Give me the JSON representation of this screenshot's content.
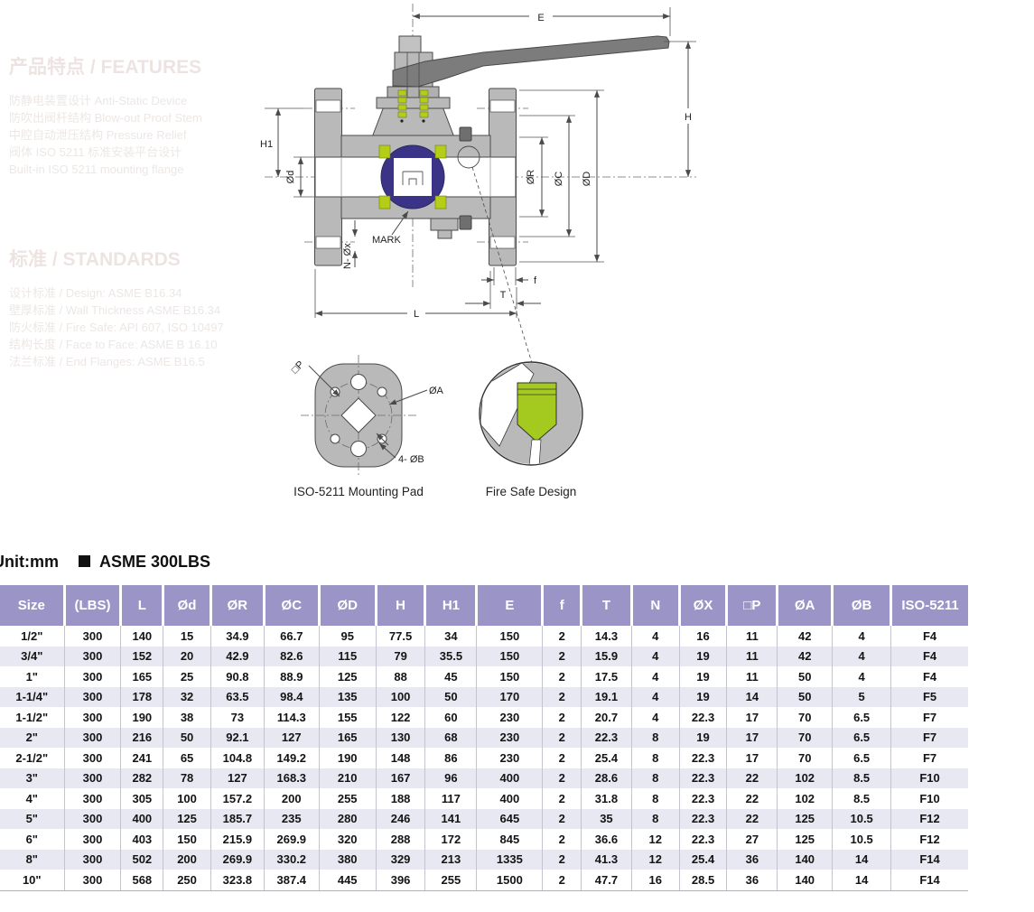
{
  "faint_sections": [
    {
      "heading": "产品特点 / FEATURES",
      "lines": [
        "防静电装置设计   Anti-Static Device",
        "防吹出阀杆结构   Blow-out Proof Stem",
        "中腔自动泄压结构   Pressure Relief",
        "阀体 ISO 5211 标准安装平台设计",
        "Built-in ISO 5211 mounting flange"
      ]
    },
    {
      "heading": "标准 / STANDARDS",
      "lines": [
        "设计标准 / Design: ASME B16.34",
        "壁厚标准 / Wall Thickness ASME B16.34",
        "防火标准 / Fire Safe: API 607, ISO 10497",
        "结构长度 / Face to Face: ASME B 16.10",
        "法兰标准 / End Flanges: ASME B16.5"
      ]
    }
  ],
  "drawing": {
    "dim_labels": {
      "E": "E",
      "H": "H",
      "H1": "H1",
      "Od": "Ød",
      "OR": "ØR",
      "OC": "ØC",
      "OD": "ØD",
      "f": "f",
      "T": "T",
      "L": "L",
      "NOx": "N- Øx",
      "mark": "MARK"
    },
    "pad_labels": {
      "P": "□P",
      "OA": "ØA",
      "OB": "4- ØB"
    },
    "captions": {
      "pad": "ISO-5211 Mounting Pad",
      "fire": "Fire Safe Design"
    },
    "colors": {
      "body_gray": "#b9b9b9",
      "handle_gray": "#7c7c7c",
      "ball_navy": "#3b3387",
      "seat_green": "#b5cd17",
      "fire_green": "#a4ca20"
    }
  },
  "unit_bar": {
    "unit": "Unit:mm",
    "standard": "ASME 300LBS"
  },
  "table": {
    "header_bg": "#9b95c7",
    "stripe_bg": "#e8e8f2",
    "headers": [
      "Size",
      "(LBS)",
      "L",
      "Ød",
      "ØR",
      "ØC",
      "ØD",
      "H",
      "H1",
      "E",
      "f",
      "T",
      "N",
      "ØX",
      "□P",
      "ØA",
      "ØB",
      "ISO-5211"
    ],
    "rows": [
      [
        "1/2\"",
        "300",
        "140",
        "15",
        "34.9",
        "66.7",
        "95",
        "77.5",
        "34",
        "150",
        "2",
        "14.3",
        "4",
        "16",
        "11",
        "42",
        "4",
        "F4"
      ],
      [
        "3/4\"",
        "300",
        "152",
        "20",
        "42.9",
        "82.6",
        "115",
        "79",
        "35.5",
        "150",
        "2",
        "15.9",
        "4",
        "19",
        "11",
        "42",
        "4",
        "F4"
      ],
      [
        "1\"",
        "300",
        "165",
        "25",
        "90.8",
        "88.9",
        "125",
        "88",
        "45",
        "150",
        "2",
        "17.5",
        "4",
        "19",
        "11",
        "50",
        "4",
        "F4"
      ],
      [
        "1-1/4\"",
        "300",
        "178",
        "32",
        "63.5",
        "98.4",
        "135",
        "100",
        "50",
        "170",
        "2",
        "19.1",
        "4",
        "19",
        "14",
        "50",
        "5",
        "F5"
      ],
      [
        "1-1/2\"",
        "300",
        "190",
        "38",
        "73",
        "114.3",
        "155",
        "122",
        "60",
        "230",
        "2",
        "20.7",
        "4",
        "22.3",
        "17",
        "70",
        "6.5",
        "F7"
      ],
      [
        "2\"",
        "300",
        "216",
        "50",
        "92.1",
        "127",
        "165",
        "130",
        "68",
        "230",
        "2",
        "22.3",
        "8",
        "19",
        "17",
        "70",
        "6.5",
        "F7"
      ],
      [
        "2-1/2\"",
        "300",
        "241",
        "65",
        "104.8",
        "149.2",
        "190",
        "148",
        "86",
        "230",
        "2",
        "25.4",
        "8",
        "22.3",
        "17",
        "70",
        "6.5",
        "F7"
      ],
      [
        "3\"",
        "300",
        "282",
        "78",
        "127",
        "168.3",
        "210",
        "167",
        "96",
        "400",
        "2",
        "28.6",
        "8",
        "22.3",
        "22",
        "102",
        "8.5",
        "F10"
      ],
      [
        "4\"",
        "300",
        "305",
        "100",
        "157.2",
        "200",
        "255",
        "188",
        "117",
        "400",
        "2",
        "31.8",
        "8",
        "22.3",
        "22",
        "102",
        "8.5",
        "F10"
      ],
      [
        "5\"",
        "300",
        "400",
        "125",
        "185.7",
        "235",
        "280",
        "246",
        "141",
        "645",
        "2",
        "35",
        "8",
        "22.3",
        "22",
        "125",
        "10.5",
        "F12"
      ],
      [
        "6\"",
        "300",
        "403",
        "150",
        "215.9",
        "269.9",
        "320",
        "288",
        "172",
        "845",
        "2",
        "36.6",
        "12",
        "22.3",
        "27",
        "125",
        "10.5",
        "F12"
      ],
      [
        "8\"",
        "300",
        "502",
        "200",
        "269.9",
        "330.2",
        "380",
        "329",
        "213",
        "1335",
        "2",
        "41.3",
        "12",
        "25.4",
        "36",
        "140",
        "14",
        "F14"
      ],
      [
        "10\"",
        "300",
        "568",
        "250",
        "323.8",
        "387.4",
        "445",
        "396",
        "255",
        "1500",
        "2",
        "47.7",
        "16",
        "28.5",
        "36",
        "140",
        "14",
        "F14"
      ]
    ]
  }
}
